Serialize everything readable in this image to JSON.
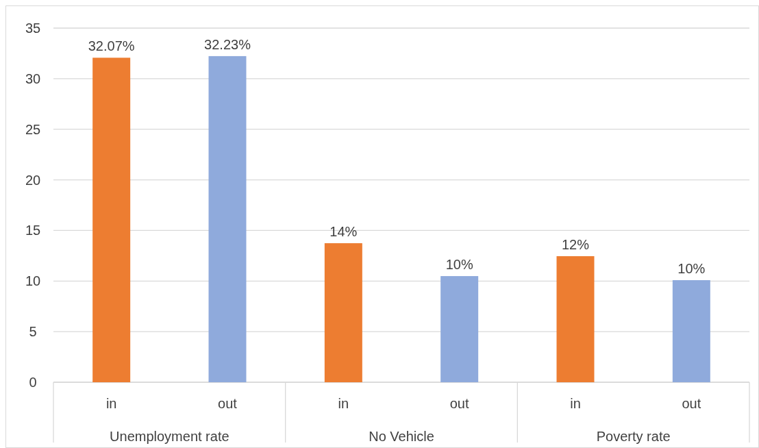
{
  "chart_data": {
    "type": "bar",
    "categories": [
      "Unemployment rate",
      "No Vehicle",
      "Poverty rate"
    ],
    "series": [
      {
        "name": "in",
        "color": "#ed7d31",
        "values": [
          32.07,
          13.74,
          12.46
        ],
        "value_labels": [
          "32.07%",
          "14%",
          "12%"
        ]
      },
      {
        "name": "out",
        "color": "#8faadc",
        "values": [
          32.23,
          10.49,
          10.09
        ],
        "value_labels": [
          "32.23%",
          "10%",
          "10%"
        ]
      }
    ],
    "ylim": [
      0,
      35
    ],
    "yticks": [
      0,
      5,
      10,
      15,
      20,
      25,
      30,
      35
    ],
    "grid": "y"
  }
}
